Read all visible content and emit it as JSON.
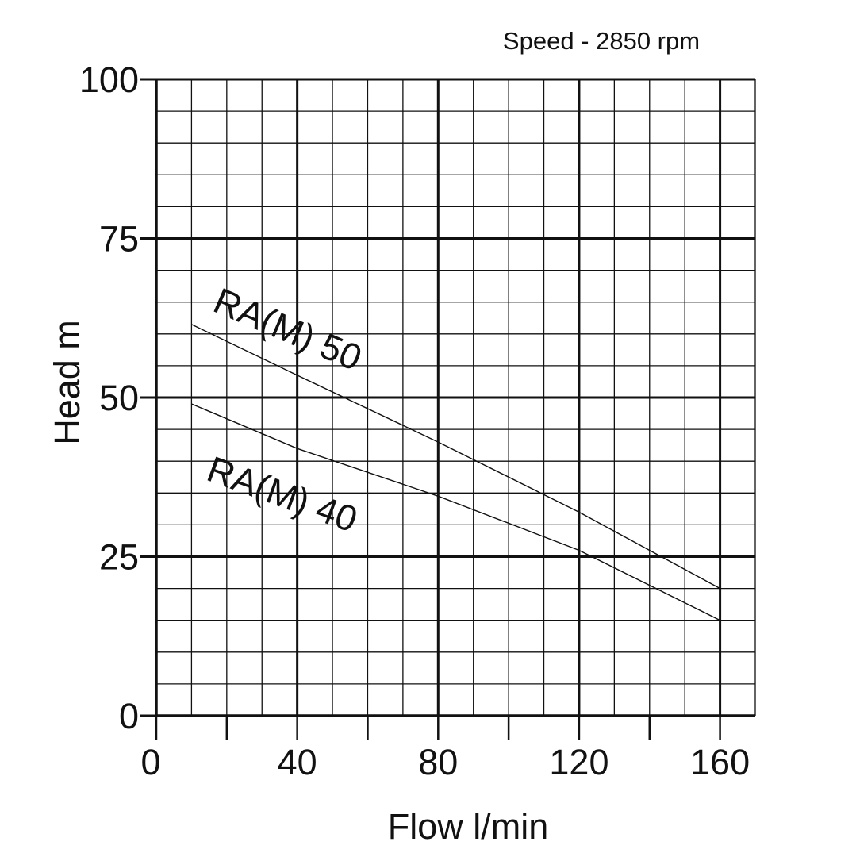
{
  "chart_data": {
    "type": "line",
    "title": "",
    "subtitle": "Speed - 2850 rpm",
    "xlabel": "Flow l/min",
    "ylabel": "Head m",
    "xlim": [
      0,
      170
    ],
    "ylim": [
      0,
      100
    ],
    "x_ticks": [
      "0",
      "40",
      "80",
      "120",
      "160"
    ],
    "y_ticks": [
      "0",
      "25",
      "50",
      "75",
      "100"
    ],
    "grid": true,
    "legend": "none",
    "series": [
      {
        "name": "RA(M) 50",
        "x": [
          10,
          40,
          80,
          120,
          160
        ],
        "y": [
          61.5,
          53.5,
          43,
          32,
          20
        ]
      },
      {
        "name": "RA(M) 40",
        "x": [
          10,
          40,
          80,
          120,
          160
        ],
        "y": [
          49,
          42,
          34.5,
          26,
          15
        ]
      }
    ]
  }
}
